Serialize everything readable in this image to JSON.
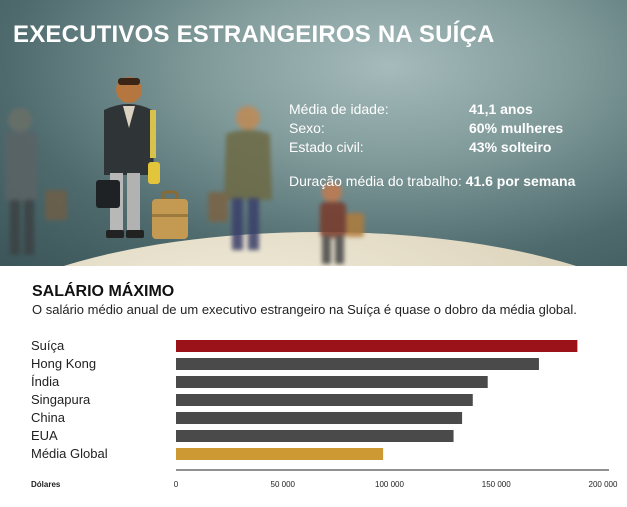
{
  "header": {
    "title": "EXECUTIVOS ESTRANGEIROS NA SUÍÇA"
  },
  "stats": {
    "items": [
      {
        "label": "Média de idade:",
        "value": "41,1 anos"
      },
      {
        "label": "Sexo:",
        "value": "60% mulheres"
      },
      {
        "label": "Estado civil:",
        "value": "43% solteiro"
      }
    ],
    "work": {
      "label": "Duração média do trabalho:",
      "value": "41.6 por semana"
    }
  },
  "colors": {
    "highlight": "#9b1318",
    "default_bar": "#4a4a4a",
    "global_bar": "#cc9933",
    "axis": "#222222"
  },
  "chart_data": {
    "type": "bar",
    "orientation": "horizontal",
    "title": "SALÁRIO MÁXIMO",
    "subtitle": "O salário médio anual de um executivo estrangeiro na Suíça é quase o dobro da média global.",
    "xlabel": "Dólares",
    "categories": [
      "Suíça",
      "Hong Kong",
      "Índia",
      "Singapura",
      "China",
      "EUA",
      "Média Global"
    ],
    "values": [
      188000,
      170000,
      146000,
      139000,
      134000,
      130000,
      97000
    ],
    "bar_colors": [
      "#9b1318",
      "#4a4a4a",
      "#4a4a4a",
      "#4a4a4a",
      "#4a4a4a",
      "#4a4a4a",
      "#cc9933"
    ],
    "xlim": [
      0,
      200000
    ],
    "ticks": [
      0,
      50000,
      100000,
      150000,
      200000
    ],
    "tick_labels": [
      "0",
      "50 000",
      "100 000",
      "150 000",
      "200 000"
    ],
    "grid": false,
    "legend": "none"
  }
}
